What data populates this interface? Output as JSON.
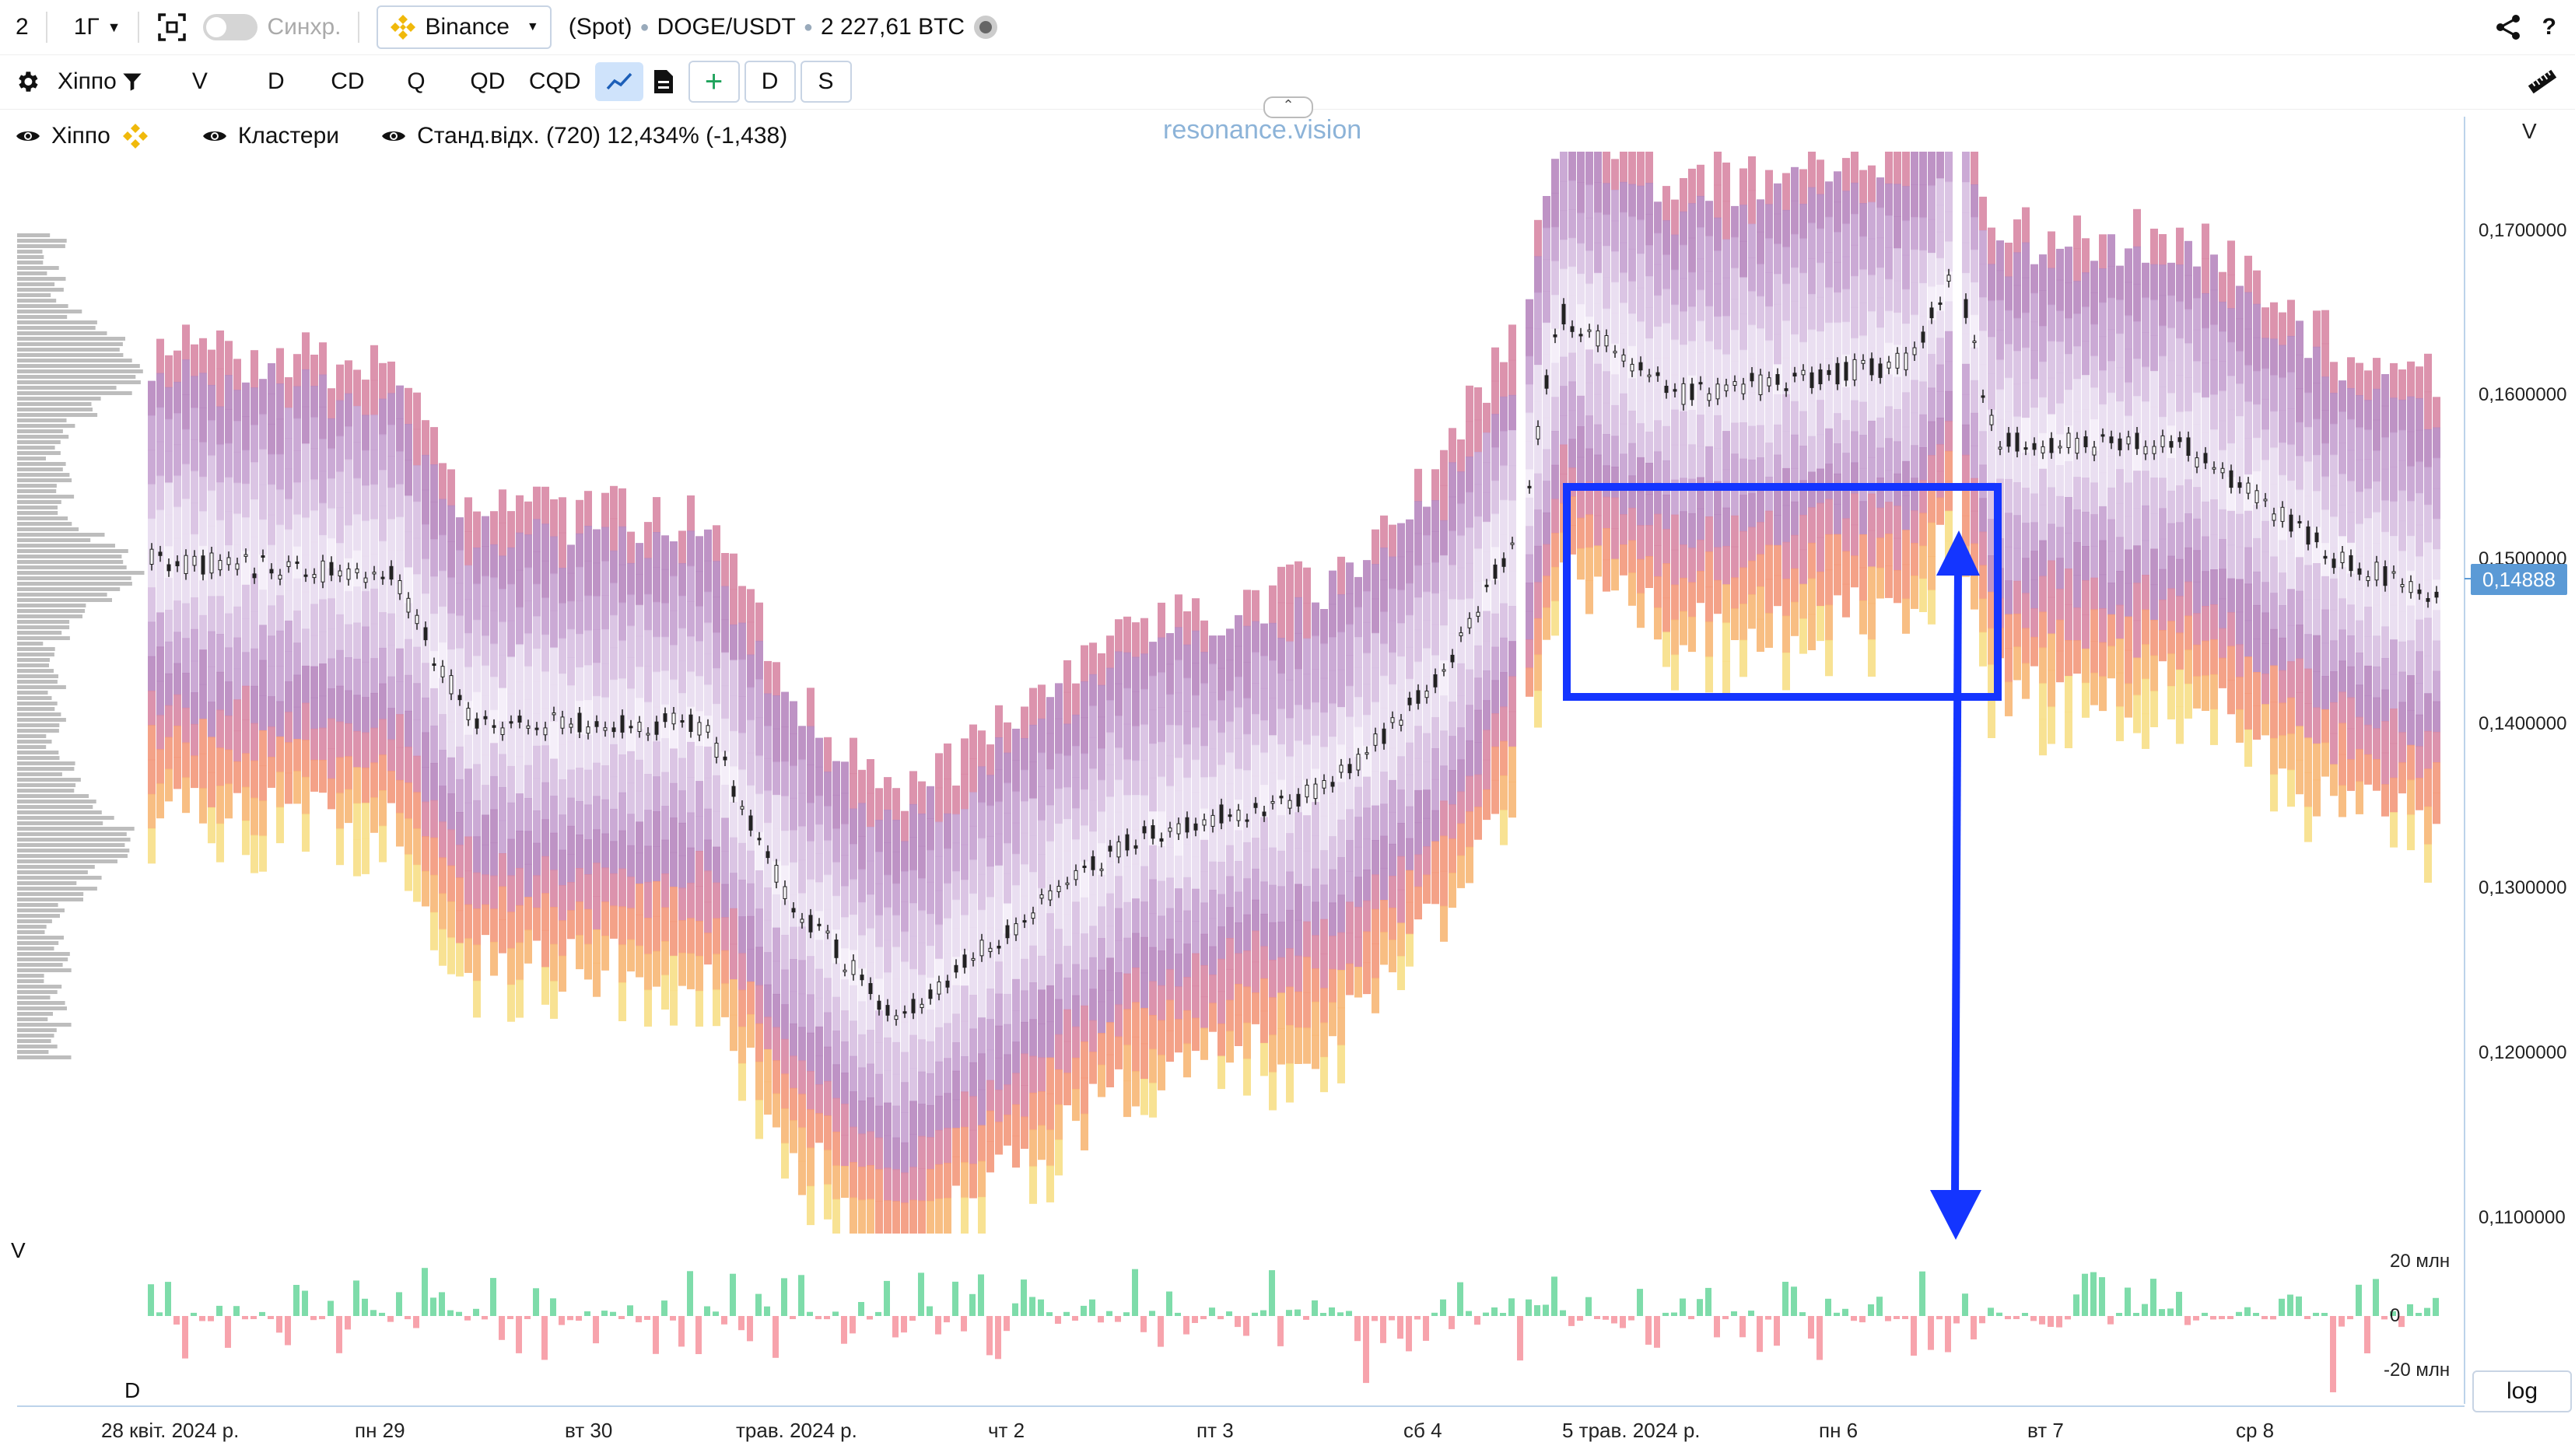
{
  "toolbar_top": {
    "layout_number": "2",
    "timeframe": "1Г",
    "sync_label": "Синхр.",
    "exchange": "Binance",
    "market": "(Spot)",
    "symbol": "DOGE/USDT",
    "volume": "2 227,61 BTC"
  },
  "toolbar_second": {
    "indicator": "Хіппо",
    "buttons": [
      "V",
      "D",
      "CD",
      "Q",
      "QD",
      "CQD"
    ],
    "plus_label": "+",
    "d_label": "D",
    "s_label": "S"
  },
  "legend": {
    "item1": "Хіппо",
    "item2": "Кластери",
    "item3": "Станд.відх. (720) 12,434% (-1,438)"
  },
  "watermark": "resonance.vision",
  "price_axis": {
    "header": "V",
    "labels": [
      "0,1700000",
      "0,1600000",
      "0,1500000",
      "0,1400000",
      "0,1300000",
      "0,1200000",
      "0,1100000"
    ],
    "current_price": "0,14888"
  },
  "volume_panel": {
    "label_v": "V",
    "label_d": "D",
    "labels": [
      "20 млн",
      "0",
      "-20 млн"
    ]
  },
  "time_axis": [
    "28 квіт. 2024 р.",
    "пн 29",
    "вт 30",
    "трав. 2024 р.",
    "чт 2",
    "пт 3",
    "сб 4",
    "5 трав. 2024 р.",
    "пн 6",
    "вт 7",
    "ср 8"
  ],
  "log_label": "log",
  "colors": {
    "accent": "#5b9ad6",
    "annotation": "#1435ff",
    "buy": "#7edcaa",
    "sell": "#f7a3ac"
  }
}
